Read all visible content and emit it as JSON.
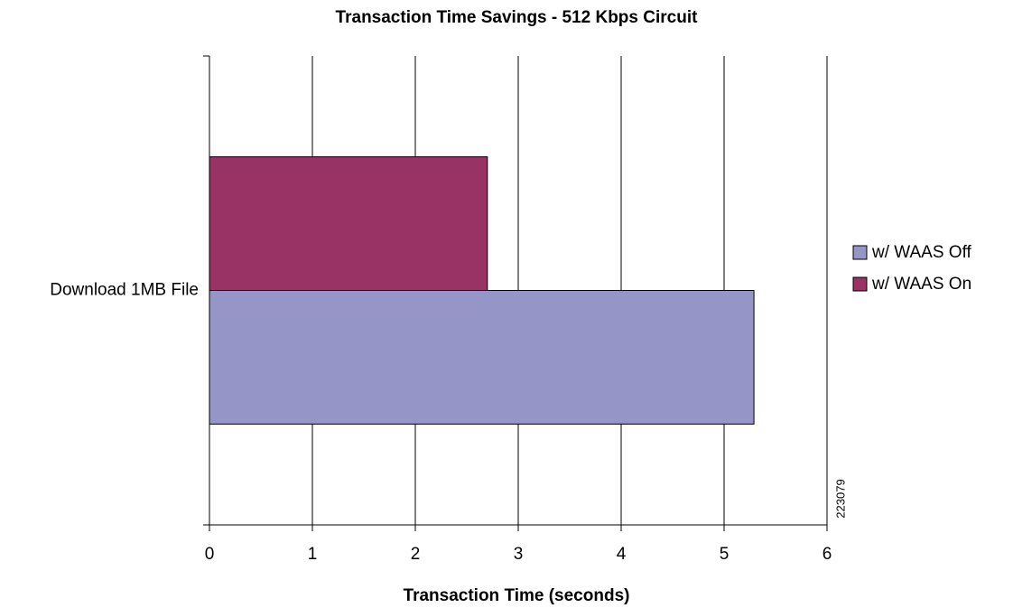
{
  "chart_data": {
    "type": "hbar",
    "title": "Transaction Time Savings - 512 Kbps Circuit",
    "x_label": "Transaction Time (seconds)",
    "categories": [
      "Download 1MB File"
    ],
    "series": [
      {
        "name": "w/ WAAS Off",
        "color": "#9595c8",
        "values": [
          5.29
        ]
      },
      {
        "name": "w/ WAAS On",
        "color": "#993366",
        "values": [
          2.7
        ]
      }
    ],
    "xlim": [
      0,
      6
    ],
    "xticks": [
      0,
      1,
      2,
      3,
      4,
      5,
      6
    ],
    "grid": true,
    "legend": "right",
    "annotation": "223079"
  }
}
